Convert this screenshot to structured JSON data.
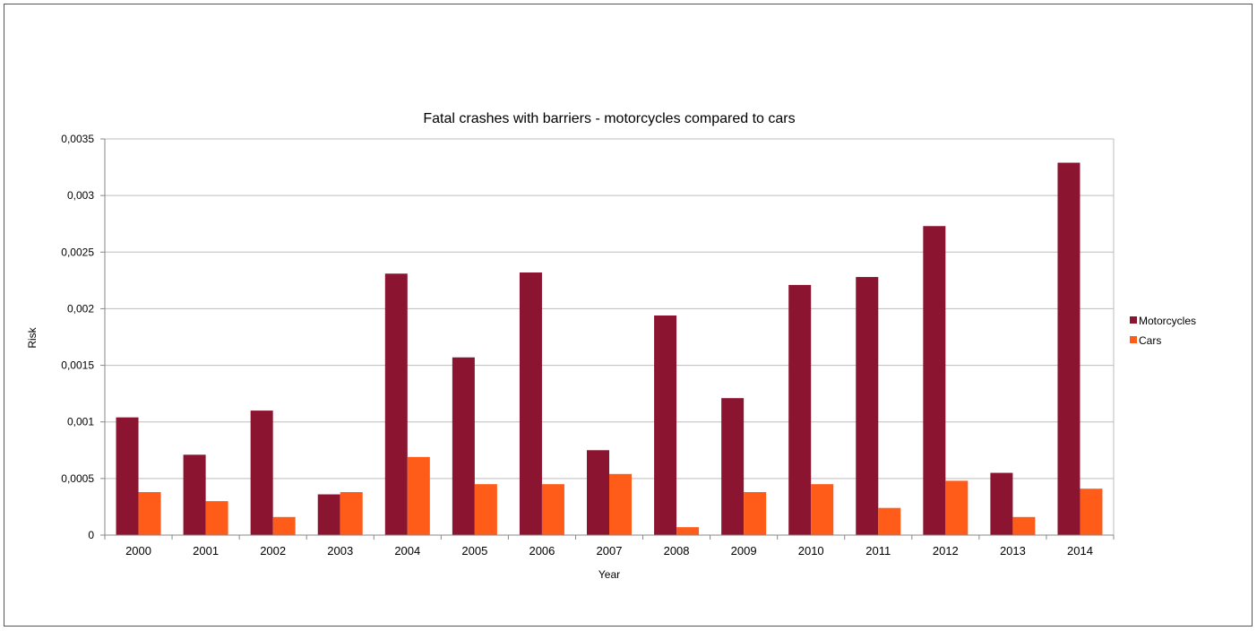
{
  "chart_data": {
    "type": "bar",
    "title": "Fatal crashes  with barriers - motorcycles compared to cars",
    "xlabel": "Year",
    "ylabel": "Risk",
    "categories": [
      "2000",
      "2001",
      "2002",
      "2003",
      "2004",
      "2005",
      "2006",
      "2007",
      "2008",
      "2009",
      "2010",
      "2011",
      "2012",
      "2013",
      "2014"
    ],
    "series": [
      {
        "name": "Motorcycles",
        "color": "#8B1530",
        "values": [
          0.00104,
          0.00071,
          0.0011,
          0.00036,
          0.00231,
          0.00157,
          0.00232,
          0.00075,
          0.00194,
          0.00121,
          0.00221,
          0.00228,
          0.00273,
          0.00055,
          0.00329
        ]
      },
      {
        "name": "Cars",
        "color": "#FF5C1A",
        "values": [
          0.00038,
          0.0003,
          0.00016,
          0.00038,
          0.00069,
          0.00045,
          0.00045,
          0.00054,
          7e-05,
          0.00038,
          0.00045,
          0.00024,
          0.00048,
          0.00016,
          0.00041
        ]
      }
    ],
    "ylim": [
      0,
      0.0035
    ],
    "yticks": [
      "0",
      "0,0005",
      "0,001",
      "0,0015",
      "0,002",
      "0,0025",
      "0,003",
      "0,0035"
    ],
    "grid": true,
    "legend": "right"
  }
}
